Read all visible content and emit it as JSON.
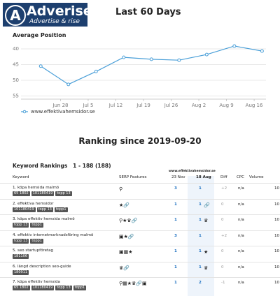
{
  "header": {
    "logo": "Adveriser",
    "slogan": "Advertise & rise",
    "title": "Last 60 Days"
  },
  "chart_data": {
    "type": "line",
    "title": "Average Position",
    "x": [
      "Jun 23",
      "Jun 30",
      "Jul 7",
      "Jul 14",
      "Jul 21",
      "Jul 28",
      "Aug 4",
      "Aug 11",
      "Aug 18"
    ],
    "series": [
      {
        "name": "www.effektivahemsidor.se",
        "color": "#4a9fd8",
        "values": [
          45.5,
          51.3,
          47.2,
          42.7,
          43.3,
          43.6,
          41.8,
          39.1,
          40.7
        ]
      }
    ],
    "ylim": [
      56,
      38
    ],
    "yticks": [
      40,
      45,
      50,
      55
    ],
    "xlim": [
      "Jun 18",
      "Aug 19"
    ],
    "xticks": [
      "Jun 28",
      "Jul 5",
      "Jul 12",
      "Jul 19",
      "Jul 26",
      "Aug 2",
      "Aug 9",
      "Aug 16"
    ],
    "grid": true,
    "legend": "bottom-left"
  },
  "ranking": {
    "title": "Ranking since 2019-09-20",
    "heading": "Keyword Rankings",
    "range": "1 - 188 (188)",
    "columns": [
      "Keyword",
      "SERP Features",
      "23 Nov",
      "18 Aug",
      "Diff",
      "CPC",
      "Volume"
    ],
    "site": "www.effektivahemsidor.se",
    "rows": [
      {
        "keyword": "1. köpa hemsida malmö",
        "tags": [
          "65 1802",
          "101180419",
          "topp 13"
        ],
        "icons": "⚲",
        "a": "3",
        "b": "1",
        "icon_b": "",
        "diff": "+2",
        "cpc": "n/a",
        "volume": "10"
      },
      {
        "keyword": "2. effektiva hemsidor",
        "tags": [
          "101180419",
          "topp 13",
          "topp1"
        ],
        "icons": "★🔗",
        "a": "1",
        "b": "1",
        "icon_b": "🔗",
        "diff": "0",
        "cpc": "n/a",
        "volume": "10"
      },
      {
        "keyword": "3. köpa effektiv hemsida malmö",
        "tags": [
          "topp 13",
          "topp1"
        ],
        "icons": "⚲★♛🔗",
        "a": "1",
        "b": "1",
        "icon_b": "♛",
        "diff": "0",
        "cpc": "n/a",
        "volume": "10"
      },
      {
        "keyword": "4. effektiv internetmarknadsföring malmö",
        "tags": [
          "topp 13",
          "topp1"
        ],
        "icons": "▣★🔗",
        "a": "3",
        "b": "1",
        "icon_b": "",
        "diff": "+2",
        "cpc": "n/a",
        "volume": "10"
      },
      {
        "keyword": "5. seo startupföretag",
        "tags": [
          "181106"
        ],
        "icons": "▣▦★",
        "a": "1",
        "b": "1",
        "icon_b": "★",
        "diff": "0",
        "cpc": "n/a",
        "volume": "10"
      },
      {
        "keyword": "6. längd description seo-guide",
        "tags": [
          "180911"
        ],
        "icons": "♛🔗",
        "a": "1",
        "b": "1",
        "icon_b": "♛",
        "diff": "0",
        "cpc": "n/a",
        "volume": "10"
      },
      {
        "keyword": "7. köpa effektiv hemsida",
        "tags": [
          "65 1802",
          "101180419",
          "topp 13",
          "topp1"
        ],
        "icons": "⚲▦★♛🔗▣",
        "a": "1",
        "b": "2",
        "icon_b": "",
        "diff": "-1",
        "cpc": "n/a",
        "volume": "10"
      }
    ]
  }
}
